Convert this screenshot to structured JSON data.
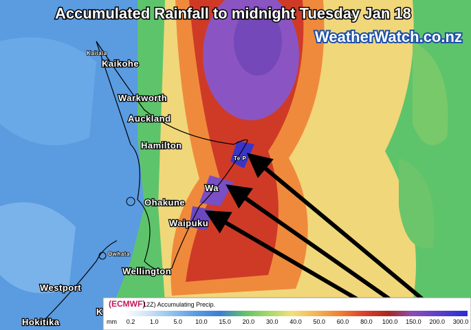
{
  "header": {
    "title": "Accumulated Rainfall to midnight Tuesday Jan 18",
    "brand": "WeatherWatch.co.nz"
  },
  "places": [
    {
      "label": "Kaitaia"
    },
    {
      "label": "Kaikohe"
    },
    {
      "label": "Warkworth"
    },
    {
      "label": "Auckland"
    },
    {
      "label": "Hamilton"
    },
    {
      "label": "Te P"
    },
    {
      "label": "Wa"
    },
    {
      "label": "Ohakune"
    },
    {
      "label": "Waipuku"
    },
    {
      "label": "Owhata"
    },
    {
      "label": "Wellington"
    },
    {
      "label": "Westport"
    },
    {
      "label": "Ka"
    },
    {
      "label": "Hokitika"
    }
  ],
  "legend": {
    "source": "(ECMWF)",
    "product": "12Z) Accumulating Precip.",
    "unit": "mm",
    "ticks": [
      "0.2",
      "1.0",
      "5.0",
      "10.0",
      "15.0",
      "20.0",
      "30.0",
      "40.0",
      "50.0",
      "60.0",
      "80.0",
      "100.0",
      "150.0",
      "200.0",
      "300.0"
    ]
  }
}
